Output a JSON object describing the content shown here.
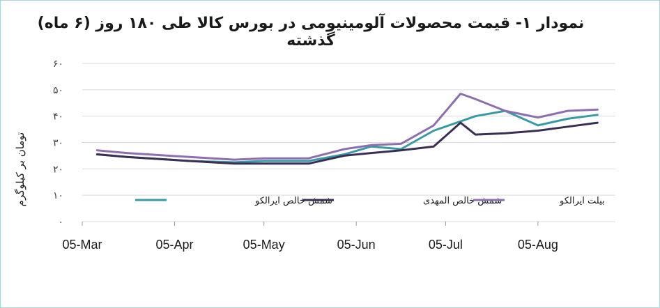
{
  "chart_data": {
    "type": "line",
    "title": "نمودار ۱- قیمت محصولات آلومینیومی در بورس کالا طی ۱۸۰ روز (۶ ماه) گذشته",
    "xlabel": "",
    "ylabel": "تومان بر کیلوگرم",
    "ylim": [
      0,
      60
    ],
    "yticks": [
      0,
      10,
      20,
      30,
      40,
      50,
      60
    ],
    "ytick_labels": [
      "۰",
      "۱۰",
      "۲۰",
      "۳۰",
      "۴۰",
      "۵۰",
      "۶۰"
    ],
    "x_tick_labels": [
      "05-Mar",
      "05-Apr",
      "05-May",
      "05-Jun",
      "05-Jul",
      "05-Aug"
    ],
    "x": [
      "2023-03-10",
      "2023-03-20",
      "2023-04-10",
      "2023-04-25",
      "2023-05-05",
      "2023-05-15",
      "2023-05-20",
      "2023-06-01",
      "2023-06-10",
      "2023-06-20",
      "2023-07-01",
      "2023-07-10",
      "2023-07-15",
      "2023-07-25",
      "2023-08-05",
      "2023-08-15",
      "2023-08-25"
    ],
    "x_range": [
      "2023-03-05",
      "2023-08-31"
    ],
    "grid": true,
    "legend_position": "bottom",
    "series": [
      {
        "name": "شمش خالص ایرالکو",
        "color": "#3a9aa4",
        "values": [
          25.5,
          24.5,
          23.0,
          22.5,
          23.0,
          23.0,
          23.0,
          25.5,
          28.5,
          27.5,
          34.5,
          38.0,
          40.0,
          42.0,
          36.5,
          39.0,
          40.5
        ]
      },
      {
        "name": "شمش خالص المهدی",
        "color": "#3b2e53",
        "values": [
          25.5,
          24.5,
          23.0,
          22.0,
          22.0,
          22.0,
          22.0,
          25.0,
          26.0,
          27.0,
          28.5,
          37.5,
          33.0,
          33.5,
          34.5,
          36.0,
          37.5
        ]
      },
      {
        "name": "بیلت ایرالکو",
        "color": "#8d6fb0",
        "values": [
          27.0,
          26.0,
          24.5,
          23.5,
          24.0,
          24.0,
          24.0,
          27.5,
          29.0,
          29.5,
          36.5,
          48.5,
          46.5,
          42.0,
          39.5,
          42.0,
          42.5
        ]
      }
    ]
  }
}
